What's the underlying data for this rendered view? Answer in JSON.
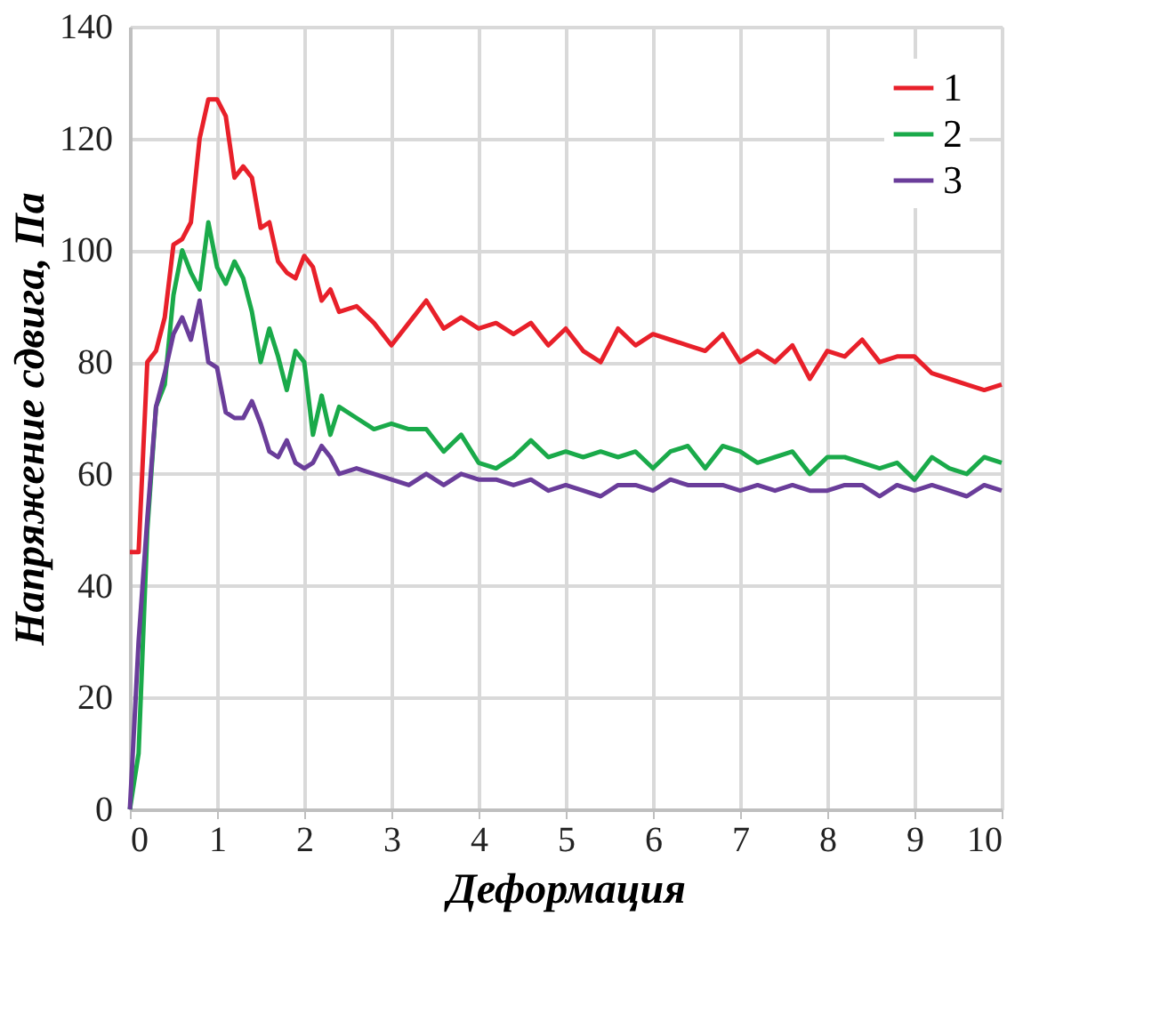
{
  "chart_data": {
    "type": "line",
    "xlabel": "Деформация",
    "ylabel": "Напряжение сдвига, Па",
    "x": [
      0,
      0.1,
      0.2,
      0.3,
      0.4,
      0.5,
      0.6,
      0.7,
      0.8,
      0.9,
      1.0,
      1.1,
      1.2,
      1.3,
      1.4,
      1.5,
      1.6,
      1.7,
      1.8,
      1.9,
      2.0,
      2.1,
      2.2,
      2.3,
      2.4,
      2.6,
      2.8,
      3.0,
      3.2,
      3.4,
      3.6,
      3.8,
      4.0,
      4.2,
      4.4,
      4.6,
      4.8,
      5.0,
      5.2,
      5.4,
      5.6,
      5.8,
      6.0,
      6.2,
      6.4,
      6.6,
      6.8,
      7.0,
      7.2,
      7.4,
      7.6,
      7.8,
      8.0,
      8.2,
      8.4,
      8.6,
      8.8,
      9.0,
      9.2,
      9.4,
      9.6,
      9.8,
      10
    ],
    "series": [
      {
        "name": "1",
        "color": "#e8202a",
        "values": [
          46,
          46,
          80,
          82,
          88,
          101,
          102,
          105,
          120,
          127,
          127,
          124,
          113,
          115,
          113,
          104,
          105,
          98,
          96,
          95,
          99,
          97,
          91,
          93,
          89,
          90,
          87,
          83,
          87,
          91,
          86,
          88,
          86,
          87,
          85,
          87,
          83,
          86,
          82,
          80,
          86,
          83,
          85,
          84,
          83,
          82,
          85,
          80,
          82,
          80,
          83,
          77,
          82,
          81,
          84,
          80,
          81,
          81,
          78,
          77,
          76,
          75,
          76
        ]
      },
      {
        "name": "2",
        "color": "#1aaa4a",
        "values": [
          0,
          10,
          50,
          72,
          76,
          92,
          100,
          96,
          93,
          105,
          97,
          94,
          98,
          95,
          89,
          80,
          86,
          81,
          75,
          82,
          80,
          67,
          74,
          67,
          72,
          70,
          68,
          69,
          68,
          68,
          64,
          67,
          62,
          61,
          63,
          66,
          63,
          64,
          63,
          64,
          63,
          64,
          61,
          64,
          65,
          61,
          65,
          64,
          62,
          63,
          64,
          60,
          63,
          63,
          62,
          61,
          62,
          59,
          63,
          61,
          60,
          63,
          62
        ]
      },
      {
        "name": "3",
        "color": "#6a3d9a",
        "values": [
          0,
          30,
          52,
          72,
          78,
          85,
          88,
          84,
          91,
          80,
          79,
          71,
          70,
          70,
          73,
          69,
          64,
          63,
          66,
          62,
          61,
          62,
          65,
          63,
          60,
          61,
          60,
          59,
          58,
          60,
          58,
          60,
          59,
          59,
          58,
          59,
          57,
          58,
          57,
          56,
          58,
          58,
          57,
          59,
          58,
          58,
          58,
          57,
          58,
          57,
          58,
          57,
          57,
          58,
          58,
          56,
          58,
          57,
          58,
          57,
          56,
          58,
          57
        ]
      }
    ],
    "xlim": [
      0,
      10
    ],
    "xticks": [
      0,
      1,
      2,
      3,
      4,
      5,
      6,
      7,
      8,
      9,
      10
    ],
    "ylim": [
      0,
      140
    ],
    "yticks": [
      0,
      20,
      40,
      60,
      80,
      100,
      120,
      140
    ],
    "grid": true,
    "legend": "top right",
    "marker": "none",
    "line_style": "solid"
  }
}
